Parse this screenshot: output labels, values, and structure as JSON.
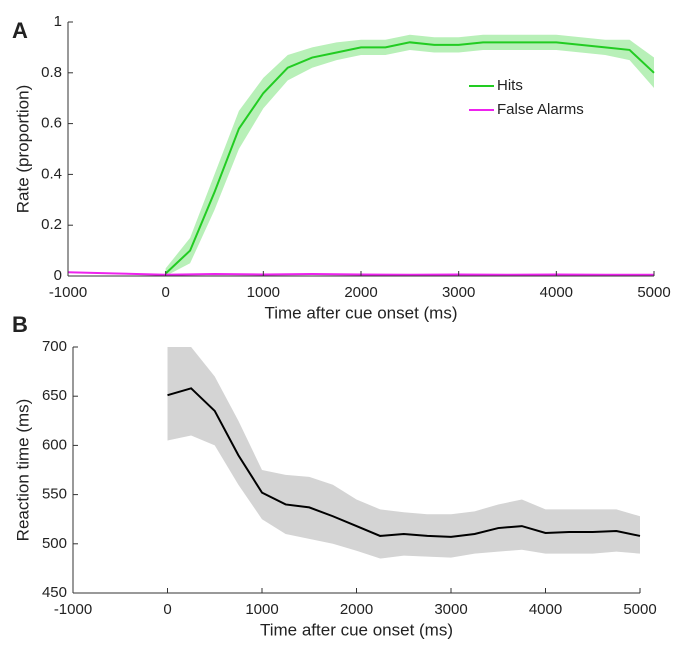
{
  "chart_data": [
    {
      "type": "line",
      "panel_label": "A",
      "xlabel": "Time after cue onset (ms)",
      "ylabel": "Rate (proportion)",
      "xlim": [
        -1000,
        5000
      ],
      "xticks": [
        -1000,
        0,
        1000,
        2000,
        3000,
        4000,
        5000
      ],
      "ylim": [
        0,
        1
      ],
      "yticks": [
        0,
        0.2,
        0.4,
        0.6,
        0.8,
        1
      ],
      "legend": "upper right",
      "series": [
        {
          "name": "Hits",
          "color": "#22cc22",
          "band_color": "#b8f0b8",
          "x": [
            0,
            250,
            500,
            750,
            1000,
            1250,
            1500,
            1750,
            2000,
            2250,
            2500,
            2750,
            3000,
            3250,
            3500,
            3750,
            4000,
            4250,
            4500,
            4750,
            5000
          ],
          "values": [
            0.01,
            0.1,
            0.33,
            0.58,
            0.72,
            0.82,
            0.86,
            0.88,
            0.9,
            0.9,
            0.92,
            0.91,
            0.91,
            0.92,
            0.92,
            0.92,
            0.92,
            0.91,
            0.9,
            0.89,
            0.8
          ],
          "lower": [
            0.0,
            0.05,
            0.26,
            0.5,
            0.66,
            0.77,
            0.82,
            0.85,
            0.87,
            0.87,
            0.89,
            0.88,
            0.88,
            0.89,
            0.89,
            0.89,
            0.89,
            0.88,
            0.87,
            0.85,
            0.74
          ],
          "upper": [
            0.03,
            0.15,
            0.4,
            0.65,
            0.78,
            0.87,
            0.9,
            0.92,
            0.93,
            0.93,
            0.95,
            0.94,
            0.94,
            0.95,
            0.95,
            0.95,
            0.95,
            0.94,
            0.93,
            0.93,
            0.86
          ]
        },
        {
          "name": "False Alarms",
          "color": "#ee22ee",
          "x": [
            -1000,
            -500,
            0,
            500,
            1000,
            1500,
            2000,
            2500,
            3000,
            3500,
            4000,
            4500,
            5000
          ],
          "values": [
            0.015,
            0.01,
            0.005,
            0.008,
            0.006,
            0.008,
            0.006,
            0.005,
            0.006,
            0.005,
            0.006,
            0.005,
            0.005
          ]
        }
      ]
    },
    {
      "type": "line",
      "panel_label": "B",
      "xlabel": "Time after cue onset (ms)",
      "ylabel": "Reaction time (ms)",
      "xlim": [
        -1000,
        5000
      ],
      "xticks": [
        -1000,
        0,
        1000,
        2000,
        3000,
        4000,
        5000
      ],
      "ylim": [
        450,
        700
      ],
      "yticks": [
        450,
        500,
        550,
        600,
        650,
        700
      ],
      "series": [
        {
          "color": "#000000",
          "band_color": "#d4d4d4",
          "x": [
            0,
            250,
            500,
            750,
            1000,
            1250,
            1500,
            1750,
            2000,
            2250,
            2500,
            2750,
            3000,
            3250,
            3500,
            3750,
            4000,
            4250,
            4500,
            4750,
            5000
          ],
          "values": [
            651,
            658,
            635,
            590,
            552,
            540,
            537,
            528,
            518,
            508,
            510,
            508,
            507,
            510,
            516,
            518,
            511,
            512,
            512,
            513,
            508
          ],
          "lower": [
            605,
            610,
            600,
            560,
            525,
            510,
            505,
            500,
            493,
            485,
            488,
            487,
            486,
            490,
            492,
            494,
            490,
            490,
            490,
            492,
            490
          ],
          "upper": [
            700,
            700,
            670,
            625,
            575,
            570,
            568,
            560,
            545,
            535,
            532,
            530,
            530,
            533,
            540,
            545,
            535,
            535,
            535,
            535,
            528
          ]
        }
      ]
    }
  ]
}
